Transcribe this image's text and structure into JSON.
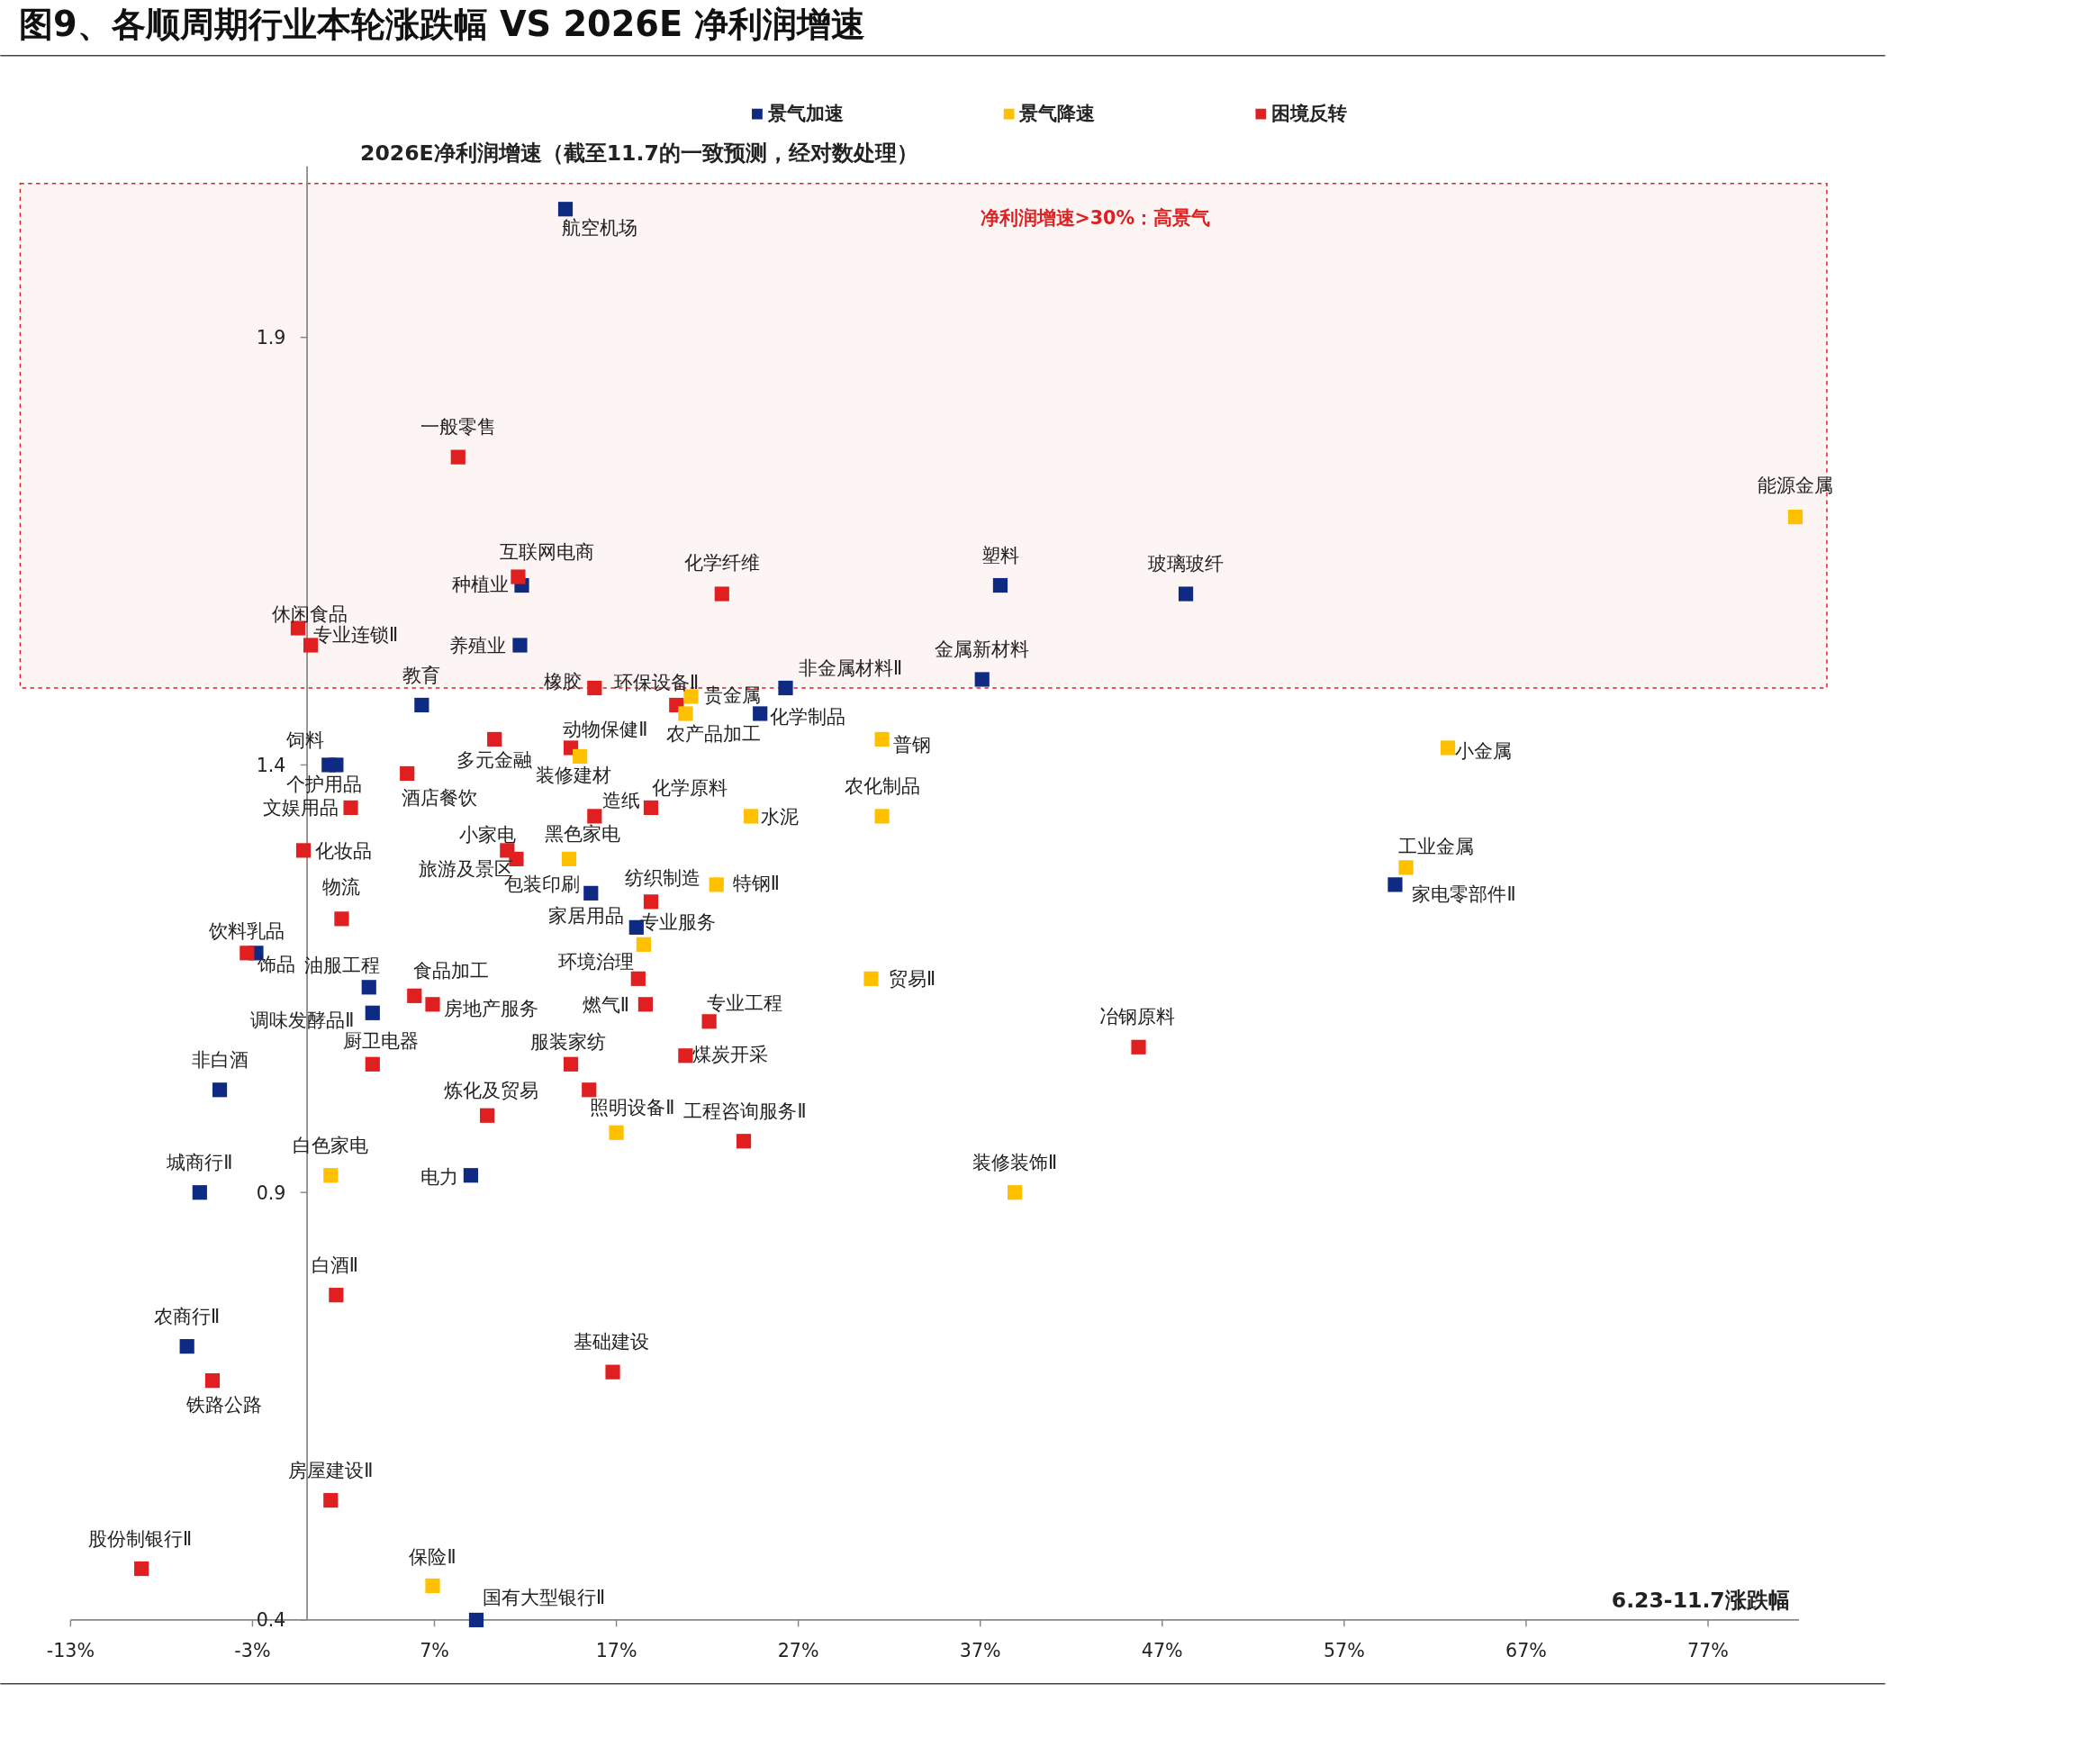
{
  "chart_data": {
    "type": "scatter",
    "title": "图9、各顺周期行业本轮涨跌幅 VS 2026E 净利润增速",
    "xlabel": "6.23-11.7涨跌幅",
    "ylabel": "2026E净利润增速（截至11.7的一致预测，经对数处理）",
    "xlim": [
      -13,
      82
    ],
    "ylim": [
      0.4,
      2.1
    ],
    "xticks": [
      {
        "value": -13,
        "label": "-13%"
      },
      {
        "value": -3,
        "label": "-3%"
      },
      {
        "value": 7,
        "label": "7%"
      },
      {
        "value": 17,
        "label": "17%"
      },
      {
        "value": 27,
        "label": "27%"
      },
      {
        "value": 37,
        "label": "37%"
      },
      {
        "value": 47,
        "label": "47%"
      },
      {
        "value": 57,
        "label": "57%"
      },
      {
        "value": 67,
        "label": "67%"
      },
      {
        "value": 77,
        "label": "77%"
      }
    ],
    "yticks": [
      0.4,
      0.9,
      1.4,
      1.9
    ],
    "grid": false,
    "legend": "top",
    "marker": "square",
    "bands": [
      {
        "axis": "y",
        "from": 1.49,
        "to": 2.08,
        "label": "净利润增速>30%：高景气",
        "color": "#e02020"
      }
    ],
    "series": [
      {
        "name": "景气加速",
        "color": "#0f2a82",
        "x": [
          14.2,
          11.8,
          11.7,
          38.1,
          48.3,
          37.1,
          26.3,
          6.3,
          24.9,
          1.2,
          1.6,
          15.6,
          18.1,
          59.8,
          -2.8,
          3.4,
          3.6,
          -4.8,
          -5.9,
          9.0,
          -6.6,
          9.3
        ],
        "values": [
          2.05,
          1.61,
          1.54,
          1.61,
          1.6,
          1.5,
          1.49,
          1.47,
          1.46,
          1.4,
          1.4,
          1.25,
          1.21,
          1.26,
          1.18,
          1.14,
          1.11,
          1.02,
          0.9,
          0.92,
          0.72,
          0.4
        ]
      },
      {
        "name": "景气降速",
        "color": "#ffc000",
        "x": [
          81.8,
          62.7,
          60.4,
          21.1,
          20.8,
          15.0,
          31.6,
          24.4,
          31.6,
          14.4,
          22.5,
          18.5,
          31.0,
          17.0,
          1.3,
          38.9,
          6.9
        ],
        "values": [
          1.69,
          1.42,
          1.28,
          1.48,
          1.46,
          1.41,
          1.43,
          1.34,
          1.34,
          1.29,
          1.26,
          1.19,
          1.15,
          0.97,
          0.92,
          0.9,
          0.44
        ]
      },
      {
        "name": "困境反转",
        "color": "#e02020",
        "x": [
          8.3,
          11.6,
          22.8,
          -0.5,
          0.2,
          15.8,
          20.3,
          10.3,
          14.5,
          5.5,
          2.4,
          15.8,
          18.9,
          -0.2,
          11.0,
          11.5,
          1.9,
          18.9,
          -3.3,
          5.9,
          6.9,
          18.2,
          18.6,
          22.1,
          3.6,
          20.8,
          14.5,
          15.5,
          9.9,
          24.0,
          45.7,
          1.6,
          -5.2,
          16.8,
          1.3,
          -9.1
        ],
        "values": [
          1.76,
          1.62,
          1.6,
          1.56,
          1.54,
          1.49,
          1.47,
          1.43,
          1.42,
          1.39,
          1.35,
          1.34,
          1.35,
          1.3,
          1.3,
          1.29,
          1.22,
          1.24,
          1.18,
          1.13,
          1.12,
          1.15,
          1.12,
          1.1,
          1.05,
          1.06,
          1.05,
          1.02,
          0.99,
          0.96,
          1.07,
          0.78,
          0.68,
          0.69,
          0.54,
          0.46
        ]
      }
    ],
    "annotations": [
      {
        "text": "航空机场",
        "x": 14.2,
        "y": 2.05
      },
      {
        "text": "种植业",
        "x": 11.8,
        "y": 1.61
      },
      {
        "text": "养殖业",
        "x": 11.7,
        "y": 1.54
      },
      {
        "text": "塑料",
        "x": 38.1,
        "y": 1.61
      },
      {
        "text": "玻璃玻纤",
        "x": 48.3,
        "y": 1.6
      },
      {
        "text": "金属新材料",
        "x": 37.1,
        "y": 1.5
      },
      {
        "text": "非金属材料Ⅱ",
        "x": 26.3,
        "y": 1.49
      },
      {
        "text": "教育",
        "x": 6.3,
        "y": 1.47
      },
      {
        "text": "化学制品",
        "x": 24.9,
        "y": 1.46
      },
      {
        "text": "饲料",
        "x": 1.2,
        "y": 1.4
      },
      {
        "text": "个护用品",
        "x": 1.6,
        "y": 1.4
      },
      {
        "text": "包装印刷",
        "x": 15.6,
        "y": 1.25
      },
      {
        "text": "家居用品",
        "x": 18.1,
        "y": 1.21
      },
      {
        "text": "家电零部件Ⅱ",
        "x": 59.8,
        "y": 1.26
      },
      {
        "text": "饰品",
        "x": -2.8,
        "y": 1.18
      },
      {
        "text": "油服工程",
        "x": 3.4,
        "y": 1.14
      },
      {
        "text": "调味发酵品Ⅱ",
        "x": 3.6,
        "y": 1.11
      },
      {
        "text": "非白酒",
        "x": -4.8,
        "y": 1.02
      },
      {
        "text": "城商行Ⅱ",
        "x": -5.9,
        "y": 0.9
      },
      {
        "text": "电力",
        "x": 9.0,
        "y": 0.92
      },
      {
        "text": "农商行Ⅱ",
        "x": -6.6,
        "y": 0.72
      },
      {
        "text": "国有大型银行Ⅱ",
        "x": 9.3,
        "y": 0.4
      },
      {
        "text": "能源金属",
        "x": 81.8,
        "y": 1.69
      },
      {
        "text": "小金属",
        "x": 62.7,
        "y": 1.42
      },
      {
        "text": "工业金属",
        "x": 60.4,
        "y": 1.28
      },
      {
        "text": "贵金属",
        "x": 21.1,
        "y": 1.48
      },
      {
        "text": "农产品加工",
        "x": 20.8,
        "y": 1.46
      },
      {
        "text": "装修建材",
        "x": 15.0,
        "y": 1.41
      },
      {
        "text": "普钢",
        "x": 31.6,
        "y": 1.43
      },
      {
        "text": "水泥",
        "x": 24.4,
        "y": 1.34
      },
      {
        "text": "农化制品",
        "x": 31.6,
        "y": 1.34
      },
      {
        "text": "黑色家电",
        "x": 14.4,
        "y": 1.29
      },
      {
        "text": "特钢Ⅱ",
        "x": 22.5,
        "y": 1.26
      },
      {
        "text": "专业服务",
        "x": 18.5,
        "y": 1.19
      },
      {
        "text": "贸易Ⅱ",
        "x": 31.0,
        "y": 1.15
      },
      {
        "text": "照明设备Ⅱ",
        "x": 17.0,
        "y": 0.97
      },
      {
        "text": "白色家电",
        "x": 1.3,
        "y": 0.92
      },
      {
        "text": "装修装饰Ⅱ",
        "x": 38.9,
        "y": 0.9
      },
      {
        "text": "保险Ⅱ",
        "x": 6.9,
        "y": 0.44
      },
      {
        "text": "一般零售",
        "x": 8.3,
        "y": 1.76
      },
      {
        "text": "互联网电商",
        "x": 11.6,
        "y": 1.62
      },
      {
        "text": "化学纤维",
        "x": 22.8,
        "y": 1.6
      },
      {
        "text": "休闲食品",
        "x": -0.5,
        "y": 1.56
      },
      {
        "text": "专业连锁Ⅱ",
        "x": 0.2,
        "y": 1.54
      },
      {
        "text": "橡胶",
        "x": 15.8,
        "y": 1.49
      },
      {
        "text": "环保设备Ⅱ",
        "x": 20.3,
        "y": 1.47
      },
      {
        "text": "多元金融",
        "x": 10.3,
        "y": 1.43
      },
      {
        "text": "动物保健Ⅱ",
        "x": 14.5,
        "y": 1.42
      },
      {
        "text": "酒店餐饮",
        "x": 5.5,
        "y": 1.39
      },
      {
        "text": "文娱用品",
        "x": 2.4,
        "y": 1.35
      },
      {
        "text": "造纸",
        "x": 15.8,
        "y": 1.34
      },
      {
        "text": "化学原料",
        "x": 18.9,
        "y": 1.35
      },
      {
        "text": "化妆品",
        "x": -0.2,
        "y": 1.3
      },
      {
        "text": "小家电",
        "x": 11.0,
        "y": 1.3
      },
      {
        "text": "旅游及景区",
        "x": 11.5,
        "y": 1.29
      },
      {
        "text": "物流",
        "x": 1.9,
        "y": 1.22
      },
      {
        "text": "纺织制造",
        "x": 18.9,
        "y": 1.24
      },
      {
        "text": "饮料乳品",
        "x": -3.3,
        "y": 1.18
      },
      {
        "text": "食品加工",
        "x": 5.9,
        "y": 1.13
      },
      {
        "text": "房地产服务",
        "x": 6.9,
        "y": 1.12
      },
      {
        "text": "环境治理",
        "x": 18.2,
        "y": 1.15
      },
      {
        "text": "燃气Ⅱ",
        "x": 18.6,
        "y": 1.12
      },
      {
        "text": "专业工程",
        "x": 22.1,
        "y": 1.1
      },
      {
        "text": "厨卫电器",
        "x": 3.6,
        "y": 1.05
      },
      {
        "text": "煤炭开采",
        "x": 20.8,
        "y": 1.06
      },
      {
        "text": "服装家纺",
        "x": 14.5,
        "y": 1.05
      },
      {
        "text": "炼化及贸易",
        "x": 9.9,
        "y": 0.99
      },
      {
        "text": "工程咨询服务Ⅱ",
        "x": 24.0,
        "y": 0.96
      },
      {
        "text": "冶钢原料",
        "x": 45.7,
        "y": 1.07
      },
      {
        "text": "白酒Ⅱ",
        "x": 1.6,
        "y": 0.78
      },
      {
        "text": "铁路公路",
        "x": -5.2,
        "y": 0.68
      },
      {
        "text": "基础建设",
        "x": 16.8,
        "y": 0.69
      },
      {
        "text": "房屋建设Ⅱ",
        "x": 1.3,
        "y": 0.54
      },
      {
        "text": "股份制银行Ⅱ",
        "x": -9.1,
        "y": 0.46
      }
    ]
  }
}
